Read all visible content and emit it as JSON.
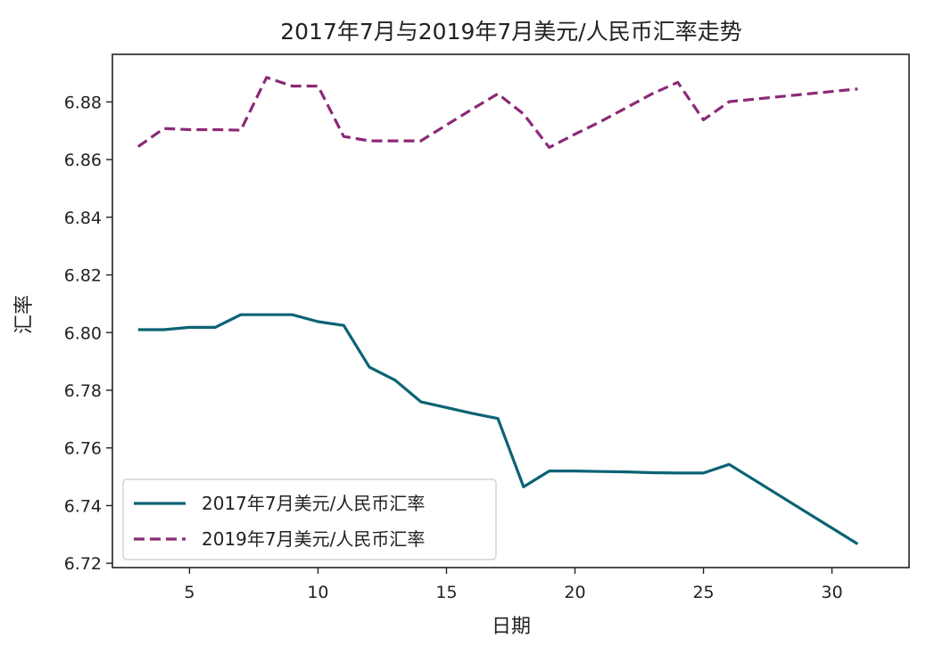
{
  "chart_data": {
    "type": "line",
    "title": "2017年7月与2019年7月美元/人民币汇率走势",
    "xlabel": "日期",
    "ylabel": "汇率",
    "xlim": [
      2,
      33
    ],
    "ylim": [
      6.7185,
      6.8965
    ],
    "x_ticks": [
      5,
      10,
      15,
      20,
      25,
      30
    ],
    "x_tick_labels": [
      "5",
      "10",
      "15",
      "20",
      "25",
      "30"
    ],
    "y_ticks": [
      6.72,
      6.74,
      6.76,
      6.78,
      6.8,
      6.82,
      6.84,
      6.86,
      6.88
    ],
    "y_tick_labels": [
      "6.72",
      "6.74",
      "6.76",
      "6.78",
      "6.80",
      "6.82",
      "6.84",
      "6.86",
      "6.88"
    ],
    "grid": false,
    "legend_position": "lower-left",
    "series": [
      {
        "name": "2017年7月美元/人民币汇率",
        "color": "#0b6374",
        "style": "solid",
        "x": [
          3,
          4,
          5,
          6,
          7,
          8,
          9,
          10,
          11,
          12,
          13,
          14,
          15,
          16,
          17,
          18,
          19,
          20,
          21,
          22,
          23,
          24,
          25,
          26,
          31
        ],
        "y": [
          6.801,
          6.801,
          6.8018,
          6.8018,
          6.8062,
          6.8062,
          6.8062,
          6.8038,
          6.8025,
          6.788,
          6.7835,
          6.776,
          6.774,
          6.772,
          6.7702,
          6.7465,
          6.752,
          6.752,
          6.7518,
          6.7517,
          6.7514,
          6.7513,
          6.7513,
          6.7543,
          6.7267
        ]
      },
      {
        "name": "2019年7月美元/人民币汇率",
        "color": "#8b2a78",
        "style": "dashed",
        "x": [
          3,
          4,
          5,
          6,
          7,
          8,
          9,
          10,
          11,
          12,
          13,
          14,
          15,
          16,
          17,
          18,
          19,
          20,
          21,
          22,
          23,
          24,
          25,
          26,
          31
        ],
        "y": [
          6.8645,
          6.8708,
          6.8704,
          6.8704,
          6.8702,
          6.8885,
          6.8855,
          6.8855,
          6.868,
          6.8665,
          6.8665,
          6.8665,
          6.872,
          6.8775,
          6.8828,
          6.8758,
          6.8642,
          6.8688,
          6.8732,
          6.878,
          6.8828,
          6.8868,
          6.8738,
          6.8801,
          6.8845
        ]
      }
    ]
  }
}
